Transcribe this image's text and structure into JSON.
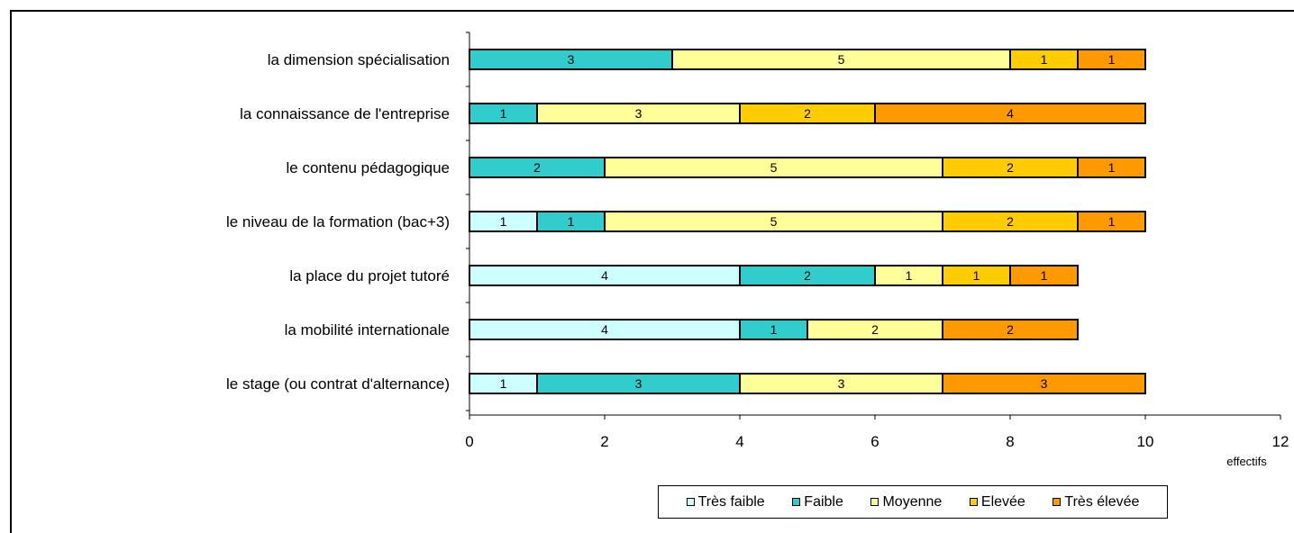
{
  "chart_data": {
    "type": "bar",
    "orientation": "horizontal",
    "stacked": true,
    "categories": [
      "la dimension spécialisation",
      "la connaissance de l'entreprise",
      "le contenu pédagogique",
      "le niveau de la formation (bac+3)",
      "la place du projet tutoré",
      "la mobilité internationale",
      "le stage (ou contrat d'alternance)"
    ],
    "series": [
      {
        "name": "Très faible",
        "color": "#CCFFFF",
        "values": [
          0,
          0,
          0,
          1,
          4,
          4,
          1
        ]
      },
      {
        "name": "Faible",
        "color": "#33CCCC",
        "values": [
          3,
          1,
          2,
          1,
          2,
          1,
          3
        ]
      },
      {
        "name": "Moyenne",
        "color": "#FFFF99",
        "values": [
          5,
          3,
          5,
          5,
          1,
          2,
          3
        ]
      },
      {
        "name": "Elevée",
        "color": "#FFCC00",
        "values": [
          1,
          2,
          2,
          2,
          1,
          0,
          0
        ]
      },
      {
        "name": "Très élevée",
        "color": "#FF9900",
        "values": [
          1,
          4,
          1,
          1,
          1,
          2,
          3
        ]
      }
    ],
    "xlabel": "effectifs",
    "xlim": [
      0,
      12
    ],
    "xticks": [
      "0",
      "2",
      "4",
      "6",
      "8",
      "10",
      "12"
    ],
    "grid": false,
    "legend_position": "bottom-right"
  }
}
